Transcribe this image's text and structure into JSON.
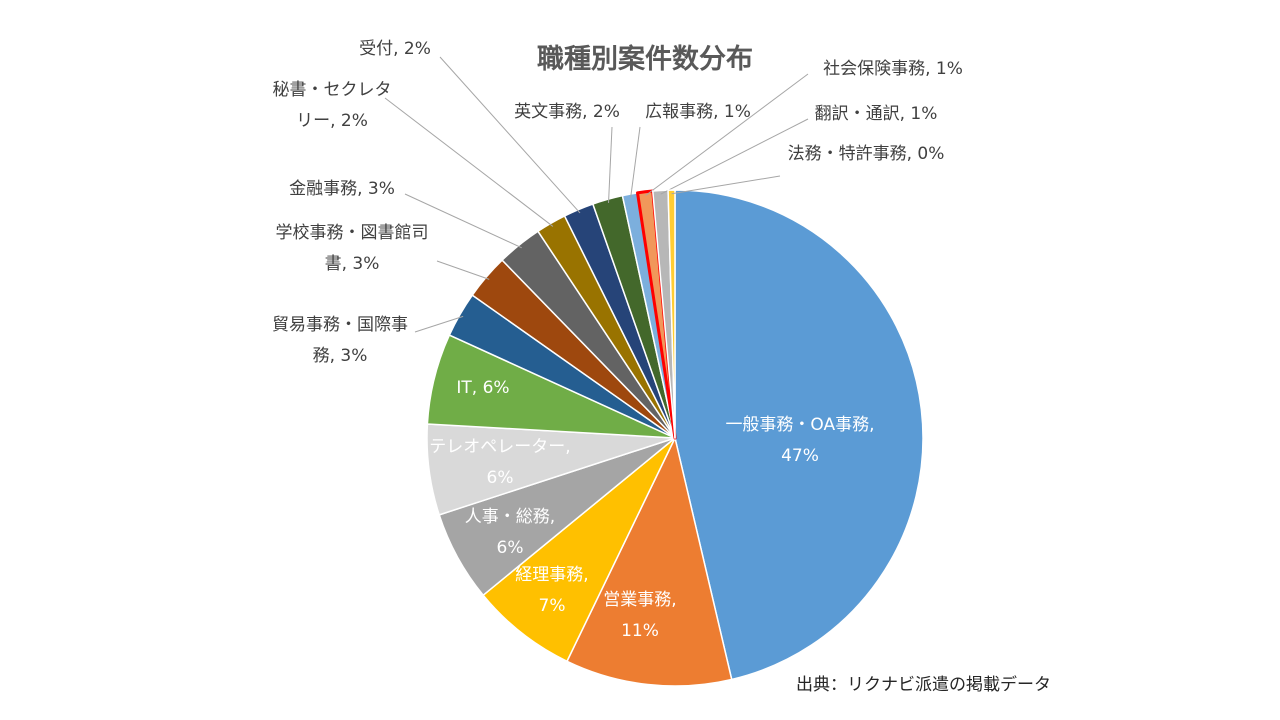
{
  "chart_data": {
    "type": "pie",
    "title": "職種別案件数分布",
    "source": "出典：リクナビ派遣の掲載データ",
    "slices": [
      {
        "name": "一般事務・OA事務",
        "value": 47,
        "label_lines": [
          "一般事務・OA事務,",
          "47%"
        ],
        "color": "#5B9BD5"
      },
      {
        "name": "営業事務",
        "value": 11,
        "label_lines": [
          "営業事務,",
          "11%"
        ],
        "color": "#ED7D31"
      },
      {
        "name": "経理事務",
        "value": 7,
        "label_lines": [
          "経理事務,",
          "7%"
        ],
        "color": "#FFC000"
      },
      {
        "name": "人事・総務",
        "value": 6,
        "label_lines": [
          "人事・総務,",
          "6%"
        ],
        "color": "#A5A5A5"
      },
      {
        "name": "テレオペレーター",
        "value": 6,
        "label_lines": [
          "テレオペレーター,",
          "6%"
        ],
        "color": "#D9D9D9"
      },
      {
        "name": "IT",
        "value": 6,
        "label_lines": [
          "IT, 6%"
        ],
        "color": "#70AD47"
      },
      {
        "name": "貿易事務・国際事務",
        "value": 3,
        "label_lines": [
          "貿易事務・国際事",
          "務, 3%"
        ],
        "color": "#255E91"
      },
      {
        "name": "学校事務・図書館司書",
        "value": 3,
        "label_lines": [
          "学校事務・図書館司",
          "書, 3%"
        ],
        "color": "#9E480E"
      },
      {
        "name": "金融事務",
        "value": 3,
        "label_lines": [
          "金融事務, 3%"
        ],
        "color": "#636363"
      },
      {
        "name": "秘書・セクレタリー",
        "value": 2,
        "label_lines": [
          "秘書・セクレタ",
          "リー, 2%"
        ],
        "color": "#997300"
      },
      {
        "name": "受付",
        "value": 2,
        "label_lines": [
          "受付, 2%"
        ],
        "color": "#264478"
      },
      {
        "name": "英文事務",
        "value": 2,
        "label_lines": [
          "英文事務, 2%"
        ],
        "color": "#43682B"
      },
      {
        "name": "広報事務",
        "value": 1,
        "label_lines": [
          "広報事務, 1%"
        ],
        "color": "#7CAFDD"
      },
      {
        "name": "社会保険事務",
        "value": 1,
        "label_lines": [
          "社会保険事務, 1%"
        ],
        "color": "#F1975A",
        "highlighted": true
      },
      {
        "name": "翻訳・通訳",
        "value": 1,
        "label_lines": [
          "翻訳・通訳, 1%"
        ],
        "color": "#B7B7B7"
      },
      {
        "name": "法務・特許事務",
        "value": 0,
        "label_lines": [
          "法務・特許事務, 0%"
        ],
        "color": "#FFCD33"
      }
    ]
  }
}
